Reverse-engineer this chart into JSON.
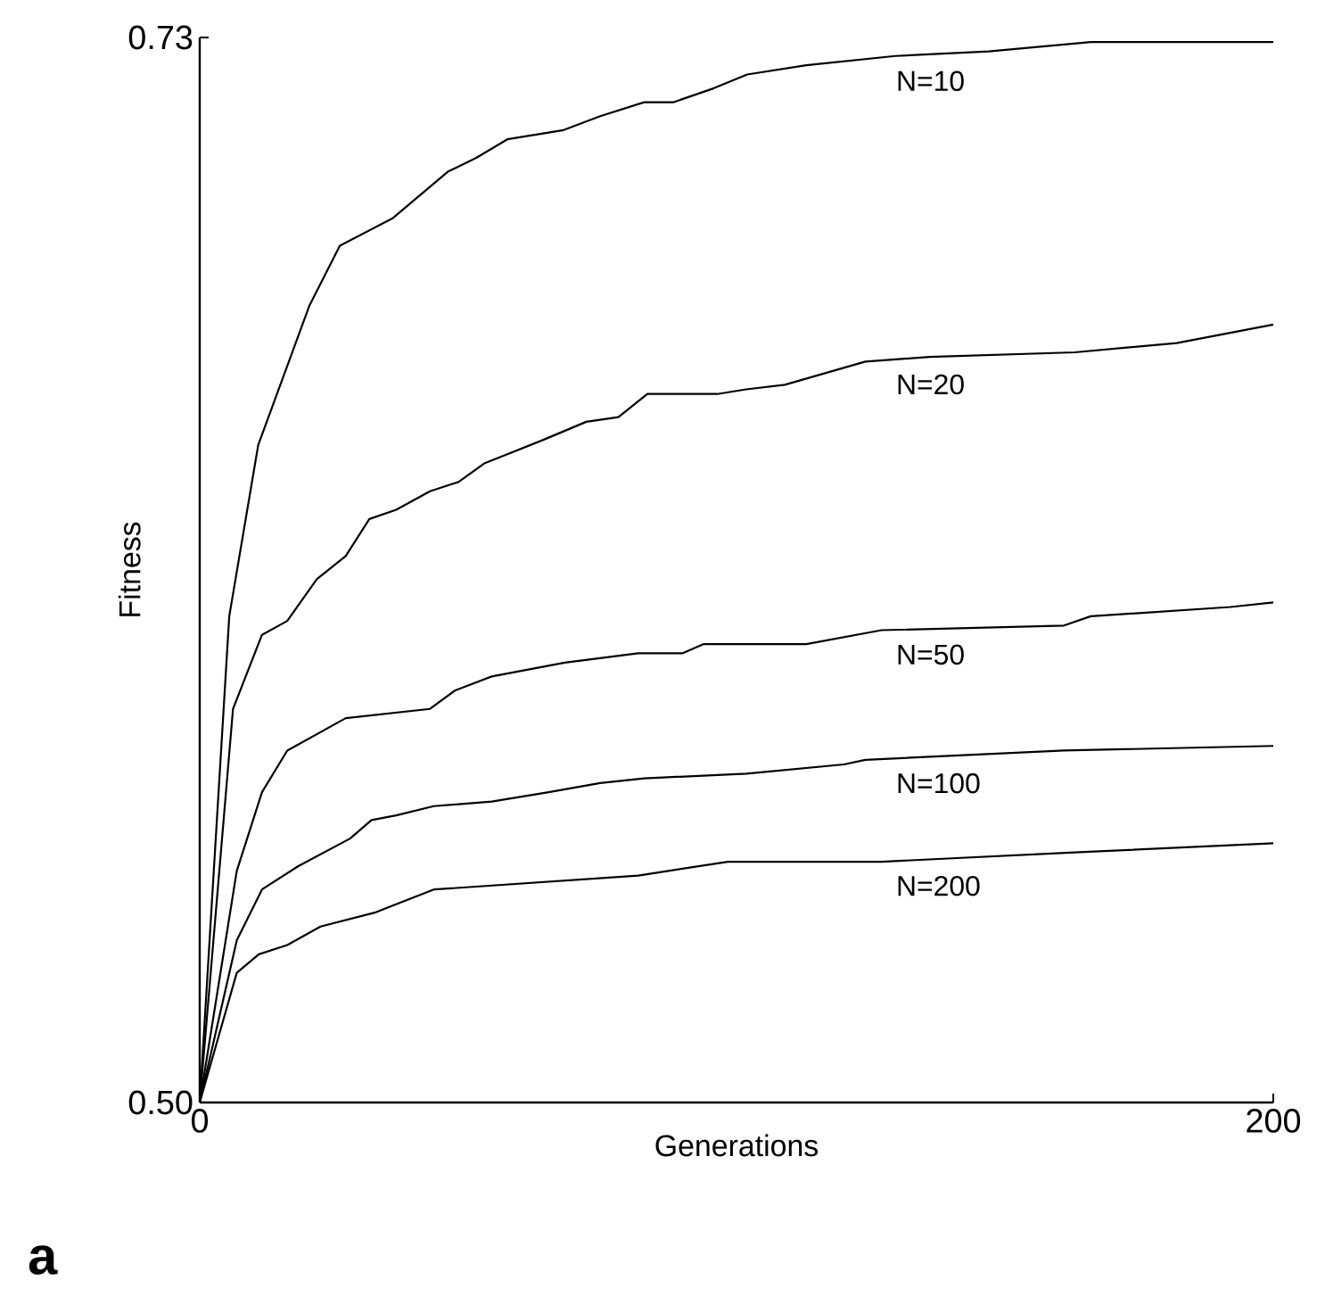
{
  "chart_data": {
    "type": "line",
    "xlabel": "Generations",
    "ylabel": "Fitness",
    "xlim": [
      0,
      200
    ],
    "ylim": [
      0.5,
      0.73
    ],
    "xticks": [
      0,
      200
    ],
    "yticks": [
      {
        "value": 0.5,
        "label": "0.50"
      },
      0.73
    ],
    "grid": false,
    "marker": "none",
    "line_style": "solid",
    "annotations": [
      "a"
    ],
    "series": [
      {
        "name": "N=10",
        "color": "#000000",
        "x": [
          0,
          5.5,
          10.9,
          20.4,
          26.1,
          36,
          46.2,
          51.5,
          57.3,
          67.8,
          74.6,
          82.8,
          88.2,
          95.7,
          102,
          113,
          129.6,
          147,
          166,
          184,
          200
        ],
        "values": [
          0.5,
          0.605,
          0.642,
          0.672,
          0.685,
          0.691,
          0.701,
          0.704,
          0.708,
          0.71,
          0.713,
          0.716,
          0.716,
          0.719,
          0.722,
          0.724,
          0.726,
          0.727,
          0.729,
          0.729,
          0.729
        ]
      },
      {
        "name": "N=20",
        "color": "#000000",
        "x": [
          0,
          6.2,
          11.6,
          16.3,
          21.8,
          27.2,
          31.6,
          36.6,
          42.9,
          48.2,
          53,
          63.8,
          72,
          78,
          83.4,
          96.4,
          101.8,
          109,
          124,
          136,
          163,
          182,
          200
        ],
        "values": [
          0.5,
          0.585,
          0.601,
          0.604,
          0.613,
          0.618,
          0.626,
          0.628,
          0.632,
          0.634,
          0.638,
          0.643,
          0.647,
          0.648,
          0.653,
          0.653,
          0.654,
          0.655,
          0.66,
          0.661,
          0.662,
          0.664,
          0.668
        ]
      },
      {
        "name": "N=50",
        "color": "#000000",
        "x": [
          0,
          6.9,
          11.6,
          16.3,
          27.2,
          42.9,
          47.6,
          54.4,
          68,
          81.7,
          89.9,
          93.9,
          101.8,
          113,
          127,
          161,
          166,
          192,
          200
        ],
        "values": [
          0.5,
          0.55,
          0.567,
          0.576,
          0.583,
          0.585,
          0.589,
          0.592,
          0.595,
          0.597,
          0.597,
          0.599,
          0.599,
          0.599,
          0.602,
          0.603,
          0.605,
          0.607,
          0.608
        ]
      },
      {
        "name": "N=100",
        "color": "#000000",
        "x": [
          0,
          6.9,
          11.6,
          18.3,
          28,
          32,
          36.6,
          43.6,
          54.4,
          65,
          74.6,
          82.8,
          101.8,
          120,
          124,
          161,
          200
        ],
        "values": [
          0.5,
          0.535,
          0.546,
          0.551,
          0.557,
          0.561,
          0.562,
          0.564,
          0.565,
          0.567,
          0.569,
          0.57,
          0.571,
          0.573,
          0.574,
          0.576,
          0.577
        ]
      },
      {
        "name": "N=200",
        "color": "#000000",
        "x": [
          0,
          6.9,
          11,
          16.3,
          22.5,
          32.6,
          43.6,
          81.7,
          98.4,
          127,
          163,
          200
        ],
        "values": [
          0.5,
          0.528,
          0.532,
          0.534,
          0.538,
          0.541,
          0.546,
          0.549,
          0.552,
          0.552,
          0.554,
          0.556
        ]
      }
    ]
  }
}
